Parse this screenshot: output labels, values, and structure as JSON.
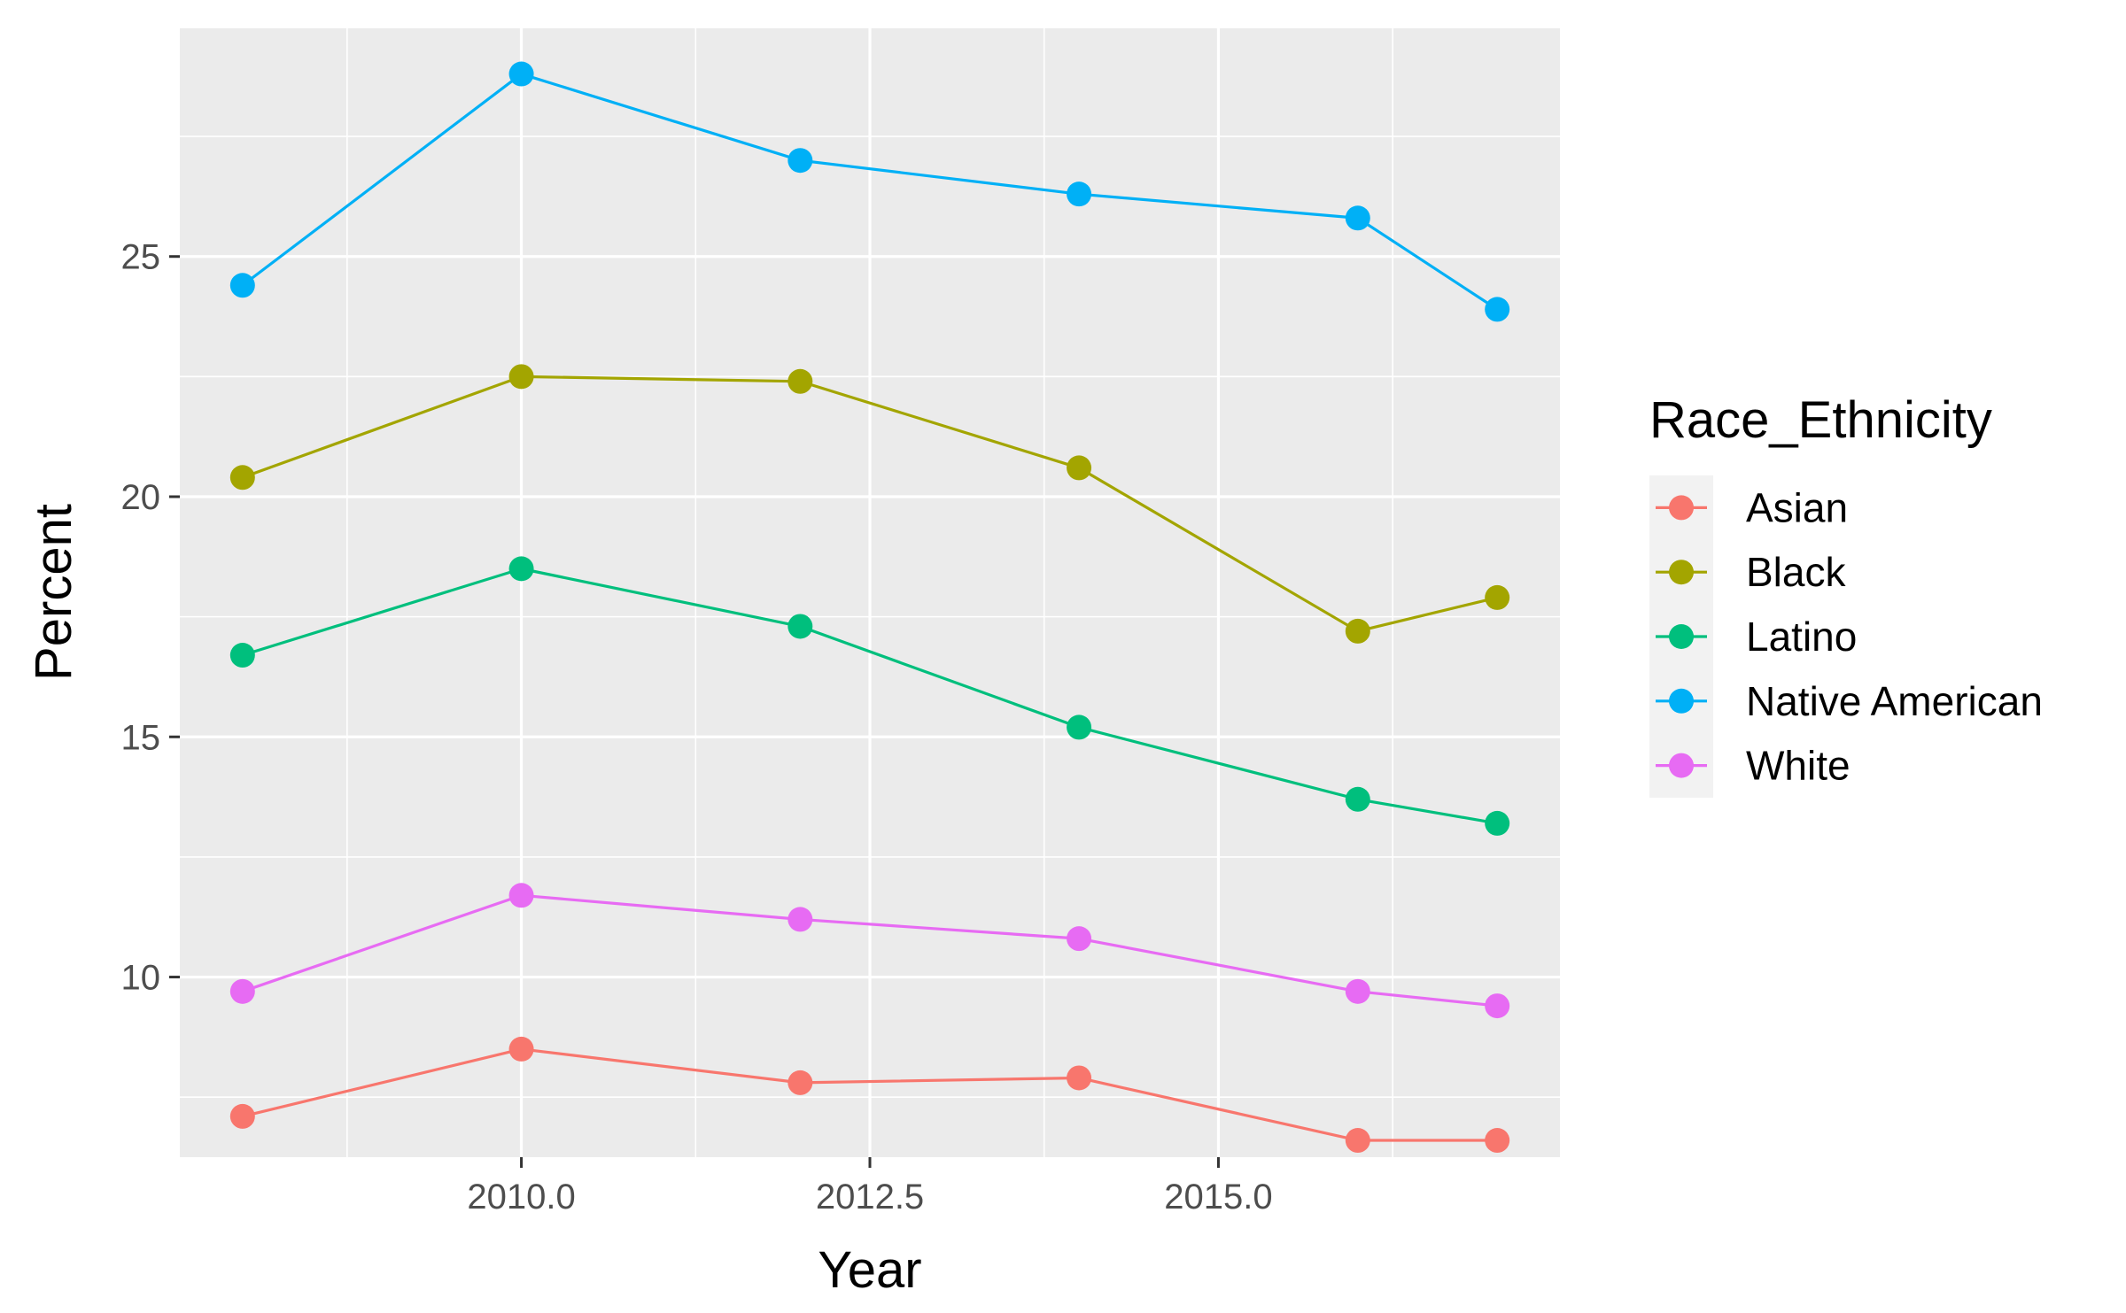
{
  "chart_data": {
    "type": "line",
    "title": "",
    "xlabel": "Year",
    "ylabel": "Percent",
    "x": [
      2008,
      2010,
      2012,
      2014,
      2016,
      2017
    ],
    "xlim": [
      2007.55,
      2017.45
    ],
    "ylim": [
      6.25,
      29.75
    ],
    "xticks": [
      2010,
      2012.5,
      2015
    ],
    "xtick_labels": [
      "2010.0",
      "2012.5",
      "2015.0"
    ],
    "yticks": [
      10,
      15,
      20,
      25
    ],
    "ytick_labels": [
      "10",
      "15",
      "20",
      "25"
    ],
    "grid": true,
    "legend": {
      "title": "Race_Ethnicity",
      "placement": "right"
    },
    "series": [
      {
        "name": "Asian",
        "color": "#F8766D",
        "values": [
          7.1,
          8.5,
          7.8,
          7.9,
          6.6,
          6.6
        ]
      },
      {
        "name": "Black",
        "color": "#A3A500",
        "values": [
          20.4,
          22.5,
          22.4,
          20.6,
          17.2,
          17.9
        ]
      },
      {
        "name": "Latino",
        "color": "#00BF7D",
        "values": [
          16.7,
          18.5,
          17.3,
          15.2,
          13.7,
          13.2
        ]
      },
      {
        "name": "Native American",
        "color": "#00B0F6",
        "values": [
          24.4,
          28.8,
          27.0,
          26.3,
          25.8,
          23.9
        ]
      },
      {
        "name": "White",
        "color": "#E76BF3",
        "values": [
          9.7,
          11.7,
          11.2,
          10.8,
          9.7,
          9.4
        ]
      }
    ]
  }
}
